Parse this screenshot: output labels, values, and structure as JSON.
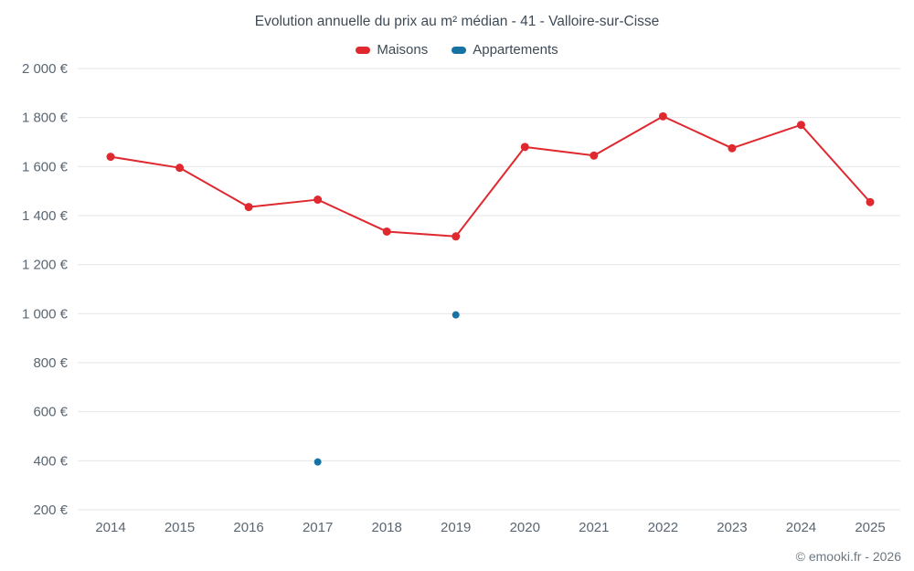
{
  "chart": {
    "title": "Evolution annuelle du prix au m² médian - 41 - Valloire-sur-Cisse",
    "footer": "© emooki.fr - 2026",
    "legend": [
      {
        "label": "Maisons",
        "color": "#e0282f"
      },
      {
        "label": "Appartements",
        "color": "#1673a3"
      }
    ]
  },
  "chart_data": {
    "type": "line",
    "title": "Evolution annuelle du prix au m² médian - 41 - Valloire-sur-Cisse",
    "categories": [
      2014,
      2015,
      2016,
      2017,
      2018,
      2019,
      2020,
      2021,
      2022,
      2023,
      2024,
      2025
    ],
    "series": [
      {
        "name": "Maisons",
        "color": "#e0282f",
        "draw_line": true,
        "values": [
          1640,
          1595,
          1435,
          1465,
          1335,
          1315,
          1680,
          1645,
          1805,
          1675,
          1770,
          1455
        ]
      },
      {
        "name": "Appartements",
        "color": "#1673a3",
        "draw_line": false,
        "values": [
          null,
          null,
          null,
          395,
          null,
          995,
          null,
          null,
          null,
          null,
          null,
          null
        ]
      }
    ],
    "xlabel": "",
    "ylabel": "",
    "ylim": [
      200,
      2000
    ],
    "ytick_step": 200,
    "ytick_suffix": " €",
    "grid": "horizontal",
    "legend_position": "top",
    "annotations": []
  }
}
